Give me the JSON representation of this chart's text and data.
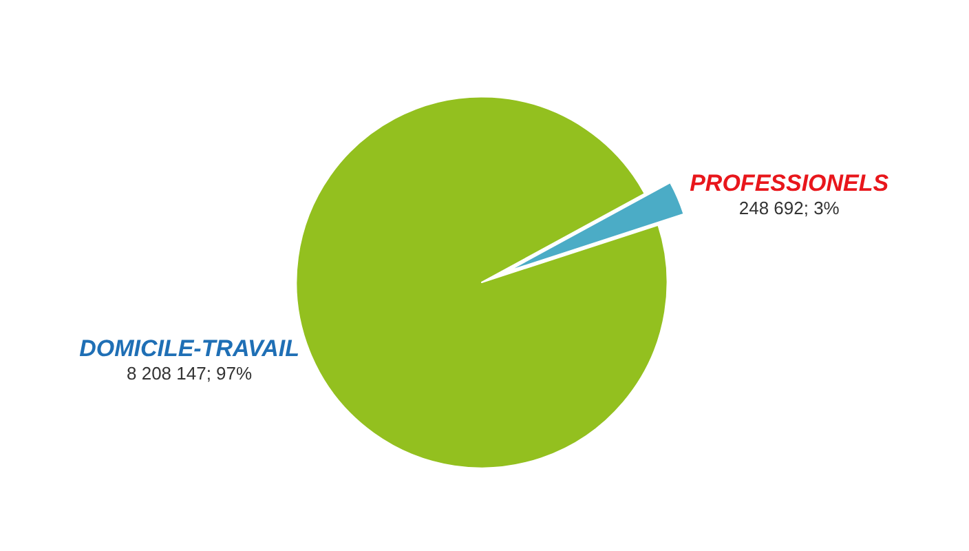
{
  "chart_data": {
    "type": "pie",
    "categories": [
      "DOMICILE-TRAVAIL",
      "PROFESSIONELS"
    ],
    "values": [
      8208147,
      248692
    ],
    "colors": [
      "#93c01f",
      "#4bacc6"
    ],
    "value_labels": [
      "8 208 147; 97%",
      "248 692; 3%"
    ]
  }
}
